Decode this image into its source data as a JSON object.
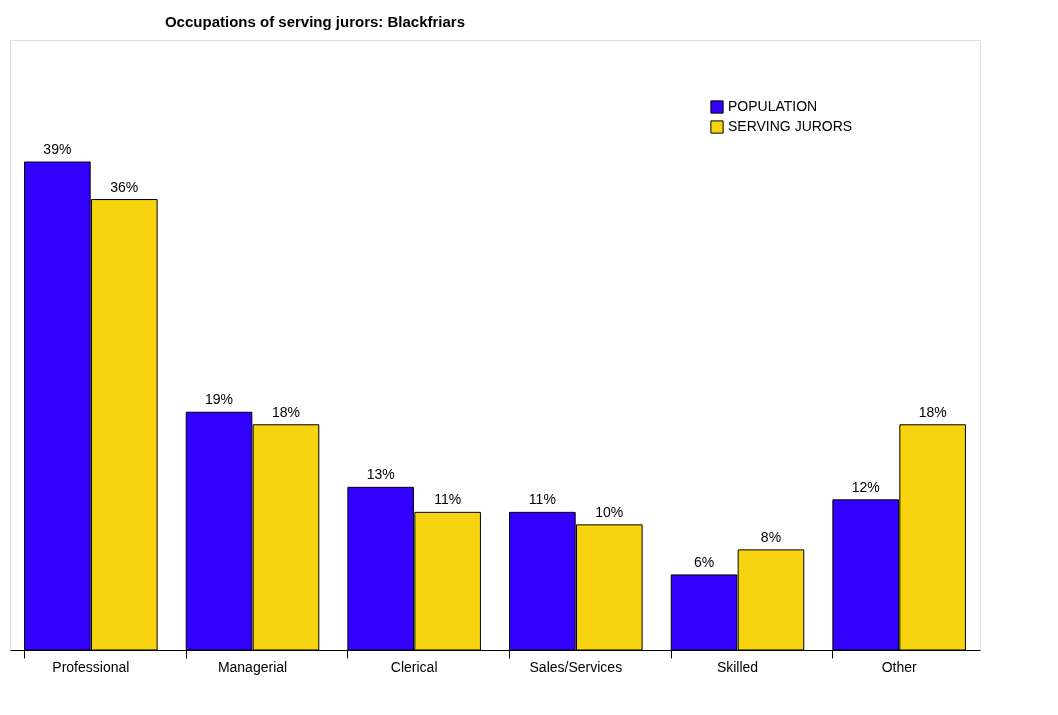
{
  "chart_data": {
    "type": "bar",
    "title": "Occupations of serving jurors: Blackfriars",
    "categories": [
      "Professional",
      "Managerial",
      "Clerical",
      "Sales/Services",
      "Skilled",
      "Other"
    ],
    "series": [
      {
        "name": "POPULATION",
        "color": "#3300ff",
        "values": [
          39,
          19,
          13,
          11,
          6,
          12
        ],
        "value_labels": [
          "39%",
          "19%",
          "13%",
          "11%",
          "6%",
          "12%"
        ]
      },
      {
        "name": "SERVING JURORS",
        "color": "#f7d40f",
        "values": [
          36,
          18,
          11,
          10,
          8,
          18
        ],
        "value_labels": [
          "36%",
          "18%",
          "11%",
          "10%",
          "8%",
          "18%"
        ]
      }
    ],
    "legend": "top right",
    "grid": false
  }
}
